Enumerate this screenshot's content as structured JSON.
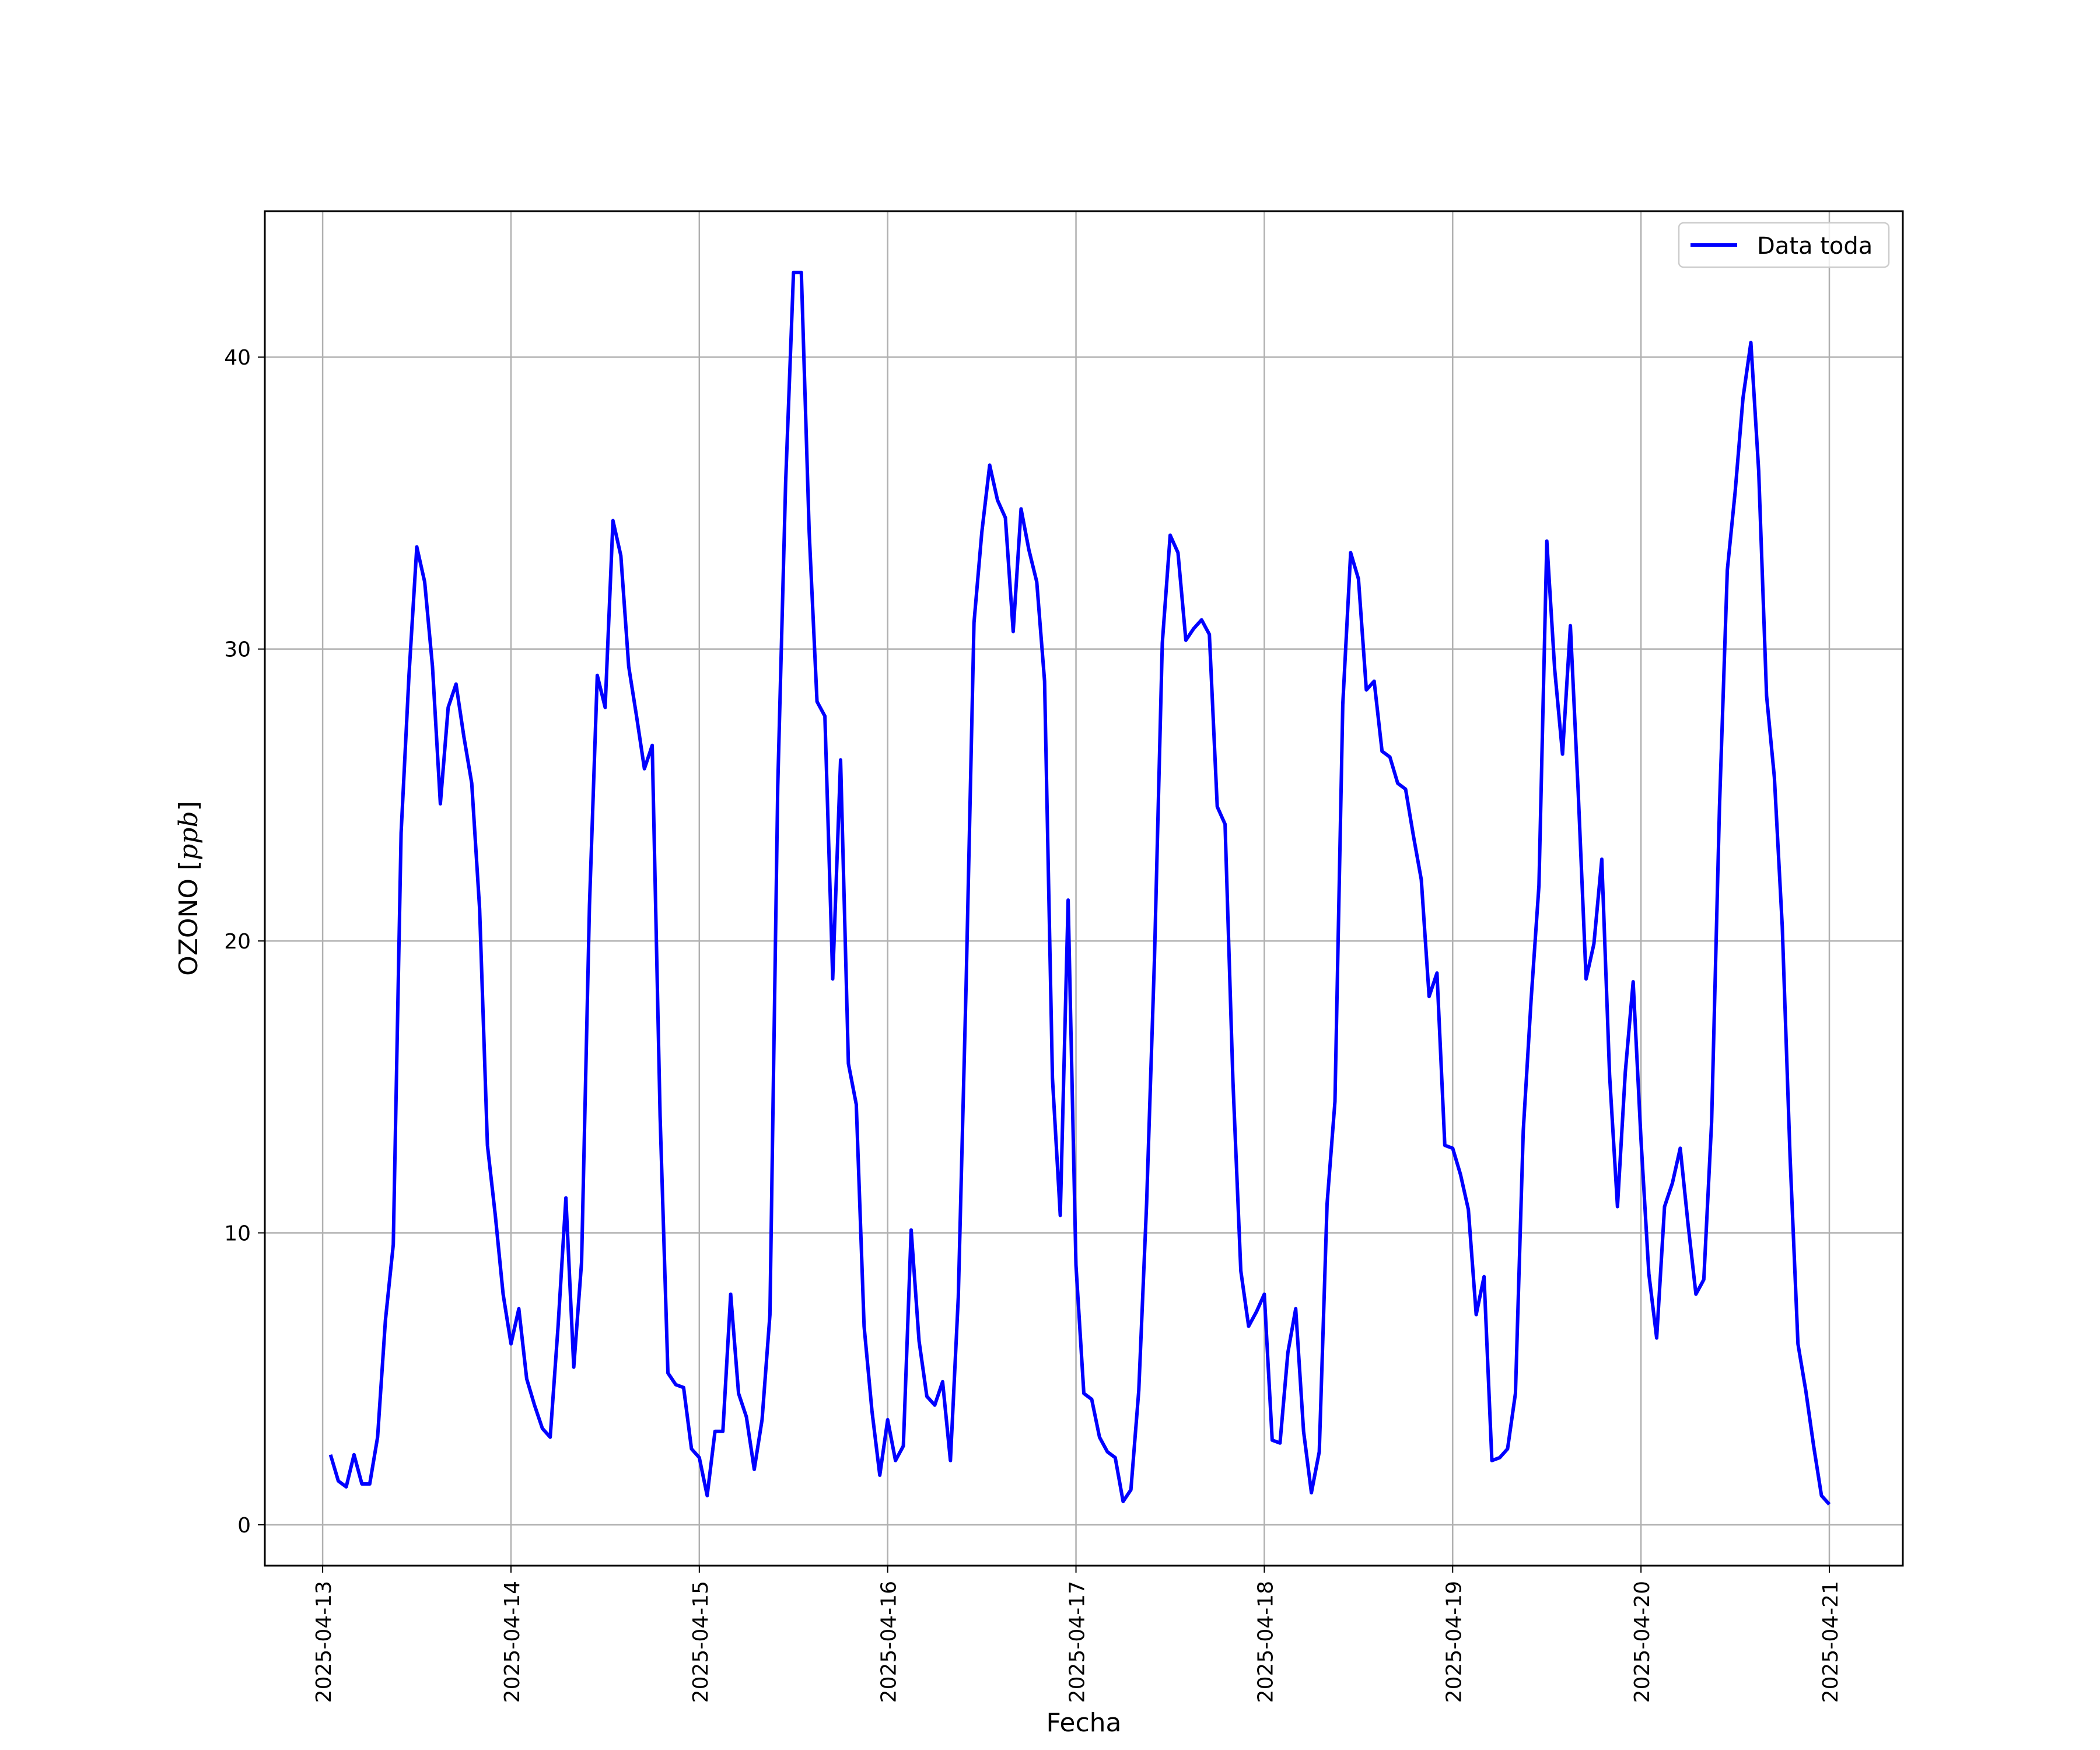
{
  "chart_data": {
    "type": "line",
    "title": "",
    "xlabel": "Fecha",
    "ylabel": "OZONO [ppb]",
    "ylabel_main": "OZONO ",
    "ylabel_unit": "ppb",
    "xlim": [
      "2025-04-12T16:38",
      "2025-04-21T09:22"
    ],
    "ylim": [
      -1.4,
      45.0
    ],
    "x_ticks": [
      "2025-04-13",
      "2025-04-14",
      "2025-04-15",
      "2025-04-16",
      "2025-04-17",
      "2025-04-18",
      "2025-04-19",
      "2025-04-20",
      "2025-04-21"
    ],
    "y_ticks": [
      0,
      10,
      20,
      30,
      40
    ],
    "grid": true,
    "legend_position": "upper right",
    "line_color": "#0000ff",
    "series": [
      {
        "name": "Data toda",
        "color": "#0000ff",
        "points": [
          [
            "2025-04-13T01:00",
            2.4
          ],
          [
            "2025-04-13T02:00",
            1.5
          ],
          [
            "2025-04-13T03:00",
            1.3
          ],
          [
            "2025-04-13T04:00",
            2.4
          ],
          [
            "2025-04-13T05:00",
            1.4
          ],
          [
            "2025-04-13T06:00",
            1.4
          ],
          [
            "2025-04-13T07:00",
            3.0
          ],
          [
            "2025-04-13T08:00",
            7.0
          ],
          [
            "2025-04-13T09:00",
            9.6
          ],
          [
            "2025-04-13T10:00",
            23.7
          ],
          [
            "2025-04-13T11:00",
            29.1
          ],
          [
            "2025-04-13T12:00",
            33.5
          ],
          [
            "2025-04-13T13:00",
            32.3
          ],
          [
            "2025-04-13T14:00",
            29.4
          ],
          [
            "2025-04-13T15:00",
            24.7
          ],
          [
            "2025-04-13T16:00",
            28.0
          ],
          [
            "2025-04-13T17:00",
            28.8
          ],
          [
            "2025-04-13T18:00",
            27.0
          ],
          [
            "2025-04-13T19:00",
            25.4
          ],
          [
            "2025-04-13T20:00",
            21.1
          ],
          [
            "2025-04-13T21:00",
            13.0
          ],
          [
            "2025-04-13T22:00",
            10.6
          ],
          [
            "2025-04-13T23:00",
            7.9
          ],
          [
            "2025-04-14T00:00",
            6.2
          ],
          [
            "2025-04-14T01:00",
            7.4
          ],
          [
            "2025-04-14T02:00",
            5.0
          ],
          [
            "2025-04-14T03:00",
            4.1
          ],
          [
            "2025-04-14T04:00",
            3.3
          ],
          [
            "2025-04-14T05:00",
            3.0
          ],
          [
            "2025-04-14T06:00",
            6.8
          ],
          [
            "2025-04-14T07:00",
            11.2
          ],
          [
            "2025-04-14T08:00",
            5.4
          ],
          [
            "2025-04-14T09:00",
            9.0
          ],
          [
            "2025-04-14T10:00",
            21.2
          ],
          [
            "2025-04-14T11:00",
            29.1
          ],
          [
            "2025-04-14T12:00",
            28.0
          ],
          [
            "2025-04-14T13:00",
            34.4
          ],
          [
            "2025-04-14T14:00",
            33.2
          ],
          [
            "2025-04-14T15:00",
            29.4
          ],
          [
            "2025-04-14T16:00",
            27.7
          ],
          [
            "2025-04-14T17:00",
            25.9
          ],
          [
            "2025-04-14T18:00",
            26.7
          ],
          [
            "2025-04-14T19:00",
            14.0
          ],
          [
            "2025-04-14T20:00",
            5.2
          ],
          [
            "2025-04-14T21:00",
            4.8
          ],
          [
            "2025-04-14T22:00",
            4.7
          ],
          [
            "2025-04-14T23:00",
            2.6
          ],
          [
            "2025-04-15T00:00",
            2.3
          ],
          [
            "2025-04-15T01:00",
            1.0
          ],
          [
            "2025-04-15T02:00",
            3.2
          ],
          [
            "2025-04-15T03:00",
            3.2
          ],
          [
            "2025-04-15T04:00",
            7.9
          ],
          [
            "2025-04-15T05:00",
            4.5
          ],
          [
            "2025-04-15T06:00",
            3.7
          ],
          [
            "2025-04-15T07:00",
            1.9
          ],
          [
            "2025-04-15T08:00",
            3.6
          ],
          [
            "2025-04-15T09:00",
            7.2
          ],
          [
            "2025-04-15T10:00",
            25.3
          ],
          [
            "2025-04-15T11:00",
            35.7
          ],
          [
            "2025-04-15T12:00",
            42.9
          ],
          [
            "2025-04-15T13:00",
            42.9
          ],
          [
            "2025-04-15T14:00",
            34.0
          ],
          [
            "2025-04-15T15:00",
            28.2
          ],
          [
            "2025-04-15T16:00",
            27.7
          ],
          [
            "2025-04-15T17:00",
            18.7
          ],
          [
            "2025-04-15T18:00",
            26.2
          ],
          [
            "2025-04-15T19:00",
            15.8
          ],
          [
            "2025-04-15T20:00",
            14.4
          ],
          [
            "2025-04-15T21:00",
            6.8
          ],
          [
            "2025-04-15T22:00",
            3.9
          ],
          [
            "2025-04-15T23:00",
            1.7
          ],
          [
            "2025-04-16T00:00",
            3.6
          ],
          [
            "2025-04-16T01:00",
            2.2
          ],
          [
            "2025-04-16T02:00",
            2.7
          ],
          [
            "2025-04-16T03:00",
            10.1
          ],
          [
            "2025-04-16T04:00",
            6.3
          ],
          [
            "2025-04-16T05:00",
            4.4
          ],
          [
            "2025-04-16T06:00",
            4.1
          ],
          [
            "2025-04-16T07:00",
            4.9
          ],
          [
            "2025-04-16T08:00",
            2.2
          ],
          [
            "2025-04-16T09:00",
            7.8
          ],
          [
            "2025-04-16T10:00",
            18.5
          ],
          [
            "2025-04-16T11:00",
            30.9
          ],
          [
            "2025-04-16T12:00",
            34.0
          ],
          [
            "2025-04-16T13:00",
            36.3
          ],
          [
            "2025-04-16T14:00",
            35.1
          ],
          [
            "2025-04-16T15:00",
            34.5
          ],
          [
            "2025-04-16T16:00",
            30.6
          ],
          [
            "2025-04-16T17:00",
            34.8
          ],
          [
            "2025-04-16T18:00",
            33.4
          ],
          [
            "2025-04-16T19:00",
            32.3
          ],
          [
            "2025-04-16T20:00",
            28.9
          ],
          [
            "2025-04-16T21:00",
            15.3
          ],
          [
            "2025-04-16T22:00",
            10.6
          ],
          [
            "2025-04-16T23:00",
            21.4
          ],
          [
            "2025-04-17T00:00",
            8.9
          ],
          [
            "2025-04-17T01:00",
            4.5
          ],
          [
            "2025-04-17T02:00",
            4.3
          ],
          [
            "2025-04-17T03:00",
            3.0
          ],
          [
            "2025-04-17T04:00",
            2.5
          ],
          [
            "2025-04-17T05:00",
            2.3
          ],
          [
            "2025-04-17T06:00",
            0.8
          ],
          [
            "2025-04-17T07:00",
            1.2
          ],
          [
            "2025-04-17T08:00",
            4.6
          ],
          [
            "2025-04-17T09:00",
            11.0
          ],
          [
            "2025-04-17T10:00",
            19.4
          ],
          [
            "2025-04-17T11:00",
            30.2
          ],
          [
            "2025-04-17T12:00",
            33.9
          ],
          [
            "2025-04-17T13:00",
            33.3
          ],
          [
            "2025-04-17T14:00",
            30.3
          ],
          [
            "2025-04-17T15:00",
            30.7
          ],
          [
            "2025-04-17T16:00",
            31.0
          ],
          [
            "2025-04-17T17:00",
            30.5
          ],
          [
            "2025-04-17T18:00",
            24.6
          ],
          [
            "2025-04-17T19:00",
            24.0
          ],
          [
            "2025-04-17T20:00",
            15.2
          ],
          [
            "2025-04-17T21:00",
            8.7
          ],
          [
            "2025-04-17T22:00",
            6.8
          ],
          [
            "2025-04-17T23:00",
            7.3
          ],
          [
            "2025-04-18T00:00",
            7.9
          ],
          [
            "2025-04-18T01:00",
            2.9
          ],
          [
            "2025-04-18T02:00",
            2.8
          ],
          [
            "2025-04-18T03:00",
            5.9
          ],
          [
            "2025-04-18T04:00",
            7.4
          ],
          [
            "2025-04-18T05:00",
            3.2
          ],
          [
            "2025-04-18T06:00",
            1.1
          ],
          [
            "2025-04-18T07:00",
            2.5
          ],
          [
            "2025-04-18T08:00",
            11.0
          ],
          [
            "2025-04-18T09:00",
            14.5
          ],
          [
            "2025-04-18T10:00",
            28.1
          ],
          [
            "2025-04-18T11:00",
            33.3
          ],
          [
            "2025-04-18T12:00",
            32.4
          ],
          [
            "2025-04-18T13:00",
            28.6
          ],
          [
            "2025-04-18T14:00",
            28.9
          ],
          [
            "2025-04-18T15:00",
            26.5
          ],
          [
            "2025-04-18T16:00",
            26.3
          ],
          [
            "2025-04-18T17:00",
            25.4
          ],
          [
            "2025-04-18T18:00",
            25.2
          ],
          [
            "2025-04-18T19:00",
            23.6
          ],
          [
            "2025-04-18T20:00",
            22.1
          ],
          [
            "2025-04-18T21:00",
            18.1
          ],
          [
            "2025-04-18T22:00",
            18.9
          ],
          [
            "2025-04-18T23:00",
            13.0
          ],
          [
            "2025-04-19T00:00",
            12.9
          ],
          [
            "2025-04-19T01:00",
            12.0
          ],
          [
            "2025-04-19T02:00",
            10.8
          ],
          [
            "2025-04-19T03:00",
            7.2
          ],
          [
            "2025-04-19T04:00",
            8.5
          ],
          [
            "2025-04-19T05:00",
            2.2
          ],
          [
            "2025-04-19T06:00",
            2.3
          ],
          [
            "2025-04-19T07:00",
            2.6
          ],
          [
            "2025-04-19T08:00",
            4.5
          ],
          [
            "2025-04-19T09:00",
            13.5
          ],
          [
            "2025-04-19T10:00",
            18.0
          ],
          [
            "2025-04-19T11:00",
            21.9
          ],
          [
            "2025-04-19T12:00",
            33.7
          ],
          [
            "2025-04-19T13:00",
            29.3
          ],
          [
            "2025-04-19T14:00",
            26.4
          ],
          [
            "2025-04-19T15:00",
            30.8
          ],
          [
            "2025-04-19T16:00",
            25.1
          ],
          [
            "2025-04-19T17:00",
            18.7
          ],
          [
            "2025-04-19T18:00",
            19.9
          ],
          [
            "2025-04-19T19:00",
            22.8
          ],
          [
            "2025-04-19T20:00",
            15.4
          ],
          [
            "2025-04-19T21:00",
            10.9
          ],
          [
            "2025-04-19T22:00",
            15.5
          ],
          [
            "2025-04-19T23:00",
            18.6
          ],
          [
            "2025-04-20T00:00",
            13.2
          ],
          [
            "2025-04-20T01:00",
            8.6
          ],
          [
            "2025-04-20T02:00",
            6.4
          ],
          [
            "2025-04-20T03:00",
            10.9
          ],
          [
            "2025-04-20T04:00",
            11.7
          ],
          [
            "2025-04-20T05:00",
            12.9
          ],
          [
            "2025-04-20T06:00",
            10.3
          ],
          [
            "2025-04-20T07:00",
            7.9
          ],
          [
            "2025-04-20T08:00",
            8.4
          ],
          [
            "2025-04-20T09:00",
            13.8
          ],
          [
            "2025-04-20T10:00",
            24.6
          ],
          [
            "2025-04-20T11:00",
            32.7
          ],
          [
            "2025-04-20T12:00",
            35.4
          ],
          [
            "2025-04-20T13:00",
            38.6
          ],
          [
            "2025-04-20T14:00",
            40.5
          ],
          [
            "2025-04-20T15:00",
            36.1
          ],
          [
            "2025-04-20T16:00",
            28.4
          ],
          [
            "2025-04-20T17:00",
            25.6
          ],
          [
            "2025-04-20T18:00",
            20.5
          ],
          [
            "2025-04-20T19:00",
            12.6
          ],
          [
            "2025-04-20T20:00",
            6.2
          ],
          [
            "2025-04-20T21:00",
            4.6
          ],
          [
            "2025-04-20T22:00",
            2.7
          ],
          [
            "2025-04-20T23:00",
            1.0
          ],
          [
            "2025-04-21T00:00",
            0.7
          ]
        ]
      }
    ]
  }
}
